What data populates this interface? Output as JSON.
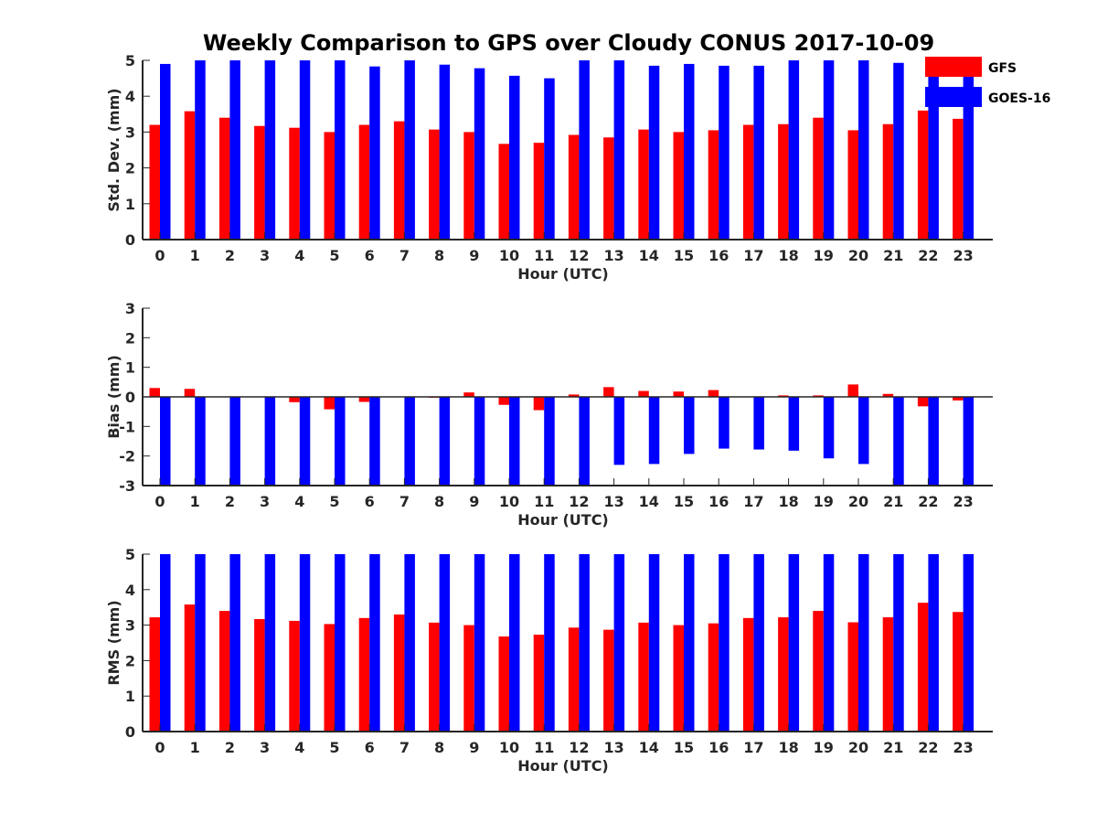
{
  "title": "Weekly Comparison to GPS over Cloudy CONUS 2017-10-09",
  "colors": {
    "GFS": "#ff0000",
    "GOES-16": "#0000ff",
    "axis": "#262626"
  },
  "legend": {
    "placement": "top-right",
    "entries": [
      "GFS",
      "GOES-16"
    ]
  },
  "chart_data": [
    {
      "type": "bar",
      "xlabel": "Hour (UTC)",
      "ylabel": "Std. Dev. (mm)",
      "ylim": [
        0,
        5
      ],
      "yticks": [
        0,
        1,
        2,
        3,
        4,
        5
      ],
      "categories": [
        "0",
        "1",
        "2",
        "3",
        "4",
        "5",
        "6",
        "7",
        "8",
        "9",
        "10",
        "11",
        "12",
        "13",
        "14",
        "15",
        "16",
        "17",
        "18",
        "19",
        "20",
        "21",
        "22",
        "23"
      ],
      "series": [
        {
          "name": "GFS",
          "values": [
            3.2,
            3.58,
            3.4,
            3.17,
            3.12,
            3.0,
            3.2,
            3.3,
            3.07,
            3.0,
            2.67,
            2.7,
            2.92,
            2.85,
            3.07,
            3.0,
            3.05,
            3.2,
            3.22,
            3.4,
            3.05,
            3.22,
            3.6,
            3.37
          ]
        },
        {
          "name": "GOES-16",
          "values": [
            4.9,
            5.0,
            5.0,
            5.0,
            5.0,
            5.0,
            4.83,
            5.0,
            4.88,
            4.78,
            4.57,
            4.5,
            5.0,
            5.0,
            4.85,
            4.9,
            4.85,
            4.85,
            5.0,
            5.0,
            5.0,
            4.93,
            5.0,
            5.0
          ]
        }
      ]
    },
    {
      "type": "bar",
      "xlabel": "Hour (UTC)",
      "ylabel": "Bias (mm)",
      "ylim": [
        -3,
        3
      ],
      "yticks": [
        -3,
        -2,
        -1,
        0,
        1,
        2,
        3
      ],
      "categories": [
        "0",
        "1",
        "2",
        "3",
        "4",
        "5",
        "6",
        "7",
        "8",
        "9",
        "10",
        "11",
        "12",
        "13",
        "14",
        "15",
        "16",
        "17",
        "18",
        "19",
        "20",
        "21",
        "22",
        "23"
      ],
      "series": [
        {
          "name": "GFS",
          "values": [
            0.3,
            0.27,
            0,
            0,
            -0.18,
            -0.42,
            -0.17,
            0,
            -0.03,
            0.15,
            -0.27,
            -0.45,
            0.08,
            0.33,
            0.2,
            0.18,
            0.23,
            0,
            0.05,
            0.05,
            0.42,
            0.1,
            -0.32,
            -0.12
          ]
        },
        {
          "name": "GOES-16",
          "values": [
            -3,
            -3,
            -3,
            -3,
            -3,
            -3,
            -3,
            -3,
            -3,
            -3,
            -3,
            -3,
            -3,
            -2.3,
            -2.27,
            -1.93,
            -1.75,
            -1.78,
            -1.82,
            -2.08,
            -2.27,
            -3,
            -3,
            -3
          ]
        }
      ]
    },
    {
      "type": "bar",
      "xlabel": "Hour (UTC)",
      "ylabel": "RMS (mm)",
      "ylim": [
        0,
        5
      ],
      "yticks": [
        0,
        1,
        2,
        3,
        4,
        5
      ],
      "categories": [
        "0",
        "1",
        "2",
        "3",
        "4",
        "5",
        "6",
        "7",
        "8",
        "9",
        "10",
        "11",
        "12",
        "13",
        "14",
        "15",
        "16",
        "17",
        "18",
        "19",
        "20",
        "21",
        "22",
        "23"
      ],
      "series": [
        {
          "name": "GFS",
          "values": [
            3.22,
            3.58,
            3.4,
            3.17,
            3.12,
            3.03,
            3.2,
            3.3,
            3.07,
            3.0,
            2.68,
            2.73,
            2.93,
            2.87,
            3.07,
            3.0,
            3.05,
            3.2,
            3.22,
            3.4,
            3.08,
            3.22,
            3.63,
            3.37
          ]
        },
        {
          "name": "GOES-16",
          "values": [
            5.0,
            5.0,
            5.0,
            5.0,
            5.0,
            5.0,
            5.0,
            5.0,
            5.0,
            5.0,
            5.0,
            5.0,
            5.0,
            5.0,
            5.0,
            5.0,
            5.0,
            5.0,
            5.0,
            5.0,
            5.0,
            5.0,
            5.0,
            5.0
          ]
        }
      ]
    }
  ]
}
